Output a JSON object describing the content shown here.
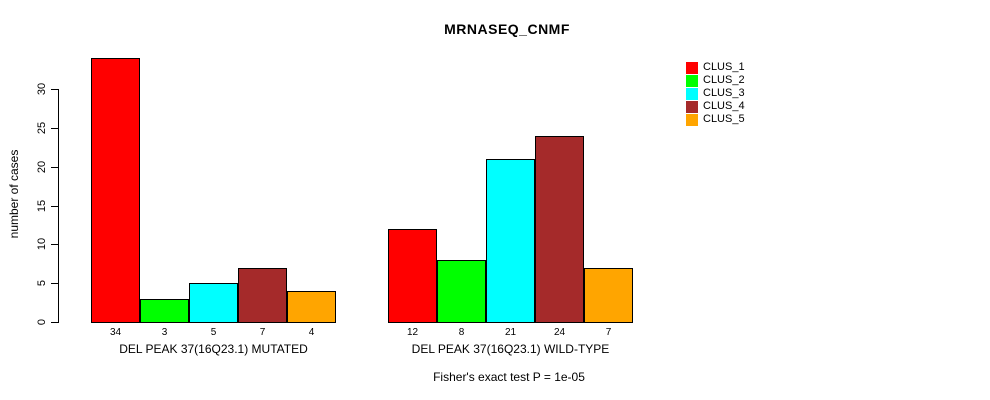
{
  "chart_data": {
    "type": "bar",
    "title": "MRNASEQ_CNMF",
    "subtitle": "Fisher's exact test P = 1e-05",
    "ylabel": "number of cases",
    "xlabel": "",
    "categories": [
      "DEL PEAK 37(16Q23.1) MUTATED",
      "DEL PEAK 37(16Q23.1) WILD-TYPE"
    ],
    "series": [
      {
        "name": "CLUS_1",
        "color": "#FF0000",
        "values": [
          34,
          12
        ]
      },
      {
        "name": "CLUS_2",
        "color": "#00FF00",
        "values": [
          3,
          8
        ]
      },
      {
        "name": "CLUS_3",
        "color": "#00FFFF",
        "values": [
          5,
          21
        ]
      },
      {
        "name": "CLUS_4",
        "color": "#A52A2A",
        "values": [
          7,
          24
        ]
      },
      {
        "name": "CLUS_5",
        "color": "#FFA500",
        "values": [
          4,
          7
        ]
      }
    ],
    "yticks": [
      0,
      5,
      10,
      15,
      20,
      25,
      30
    ],
    "ylim": [
      0,
      34
    ],
    "grid": false,
    "show_bar_value_labels": true,
    "legend_position": "top-right",
    "bar_border_color": "#000000",
    "background_color": "#FFFFFF"
  }
}
